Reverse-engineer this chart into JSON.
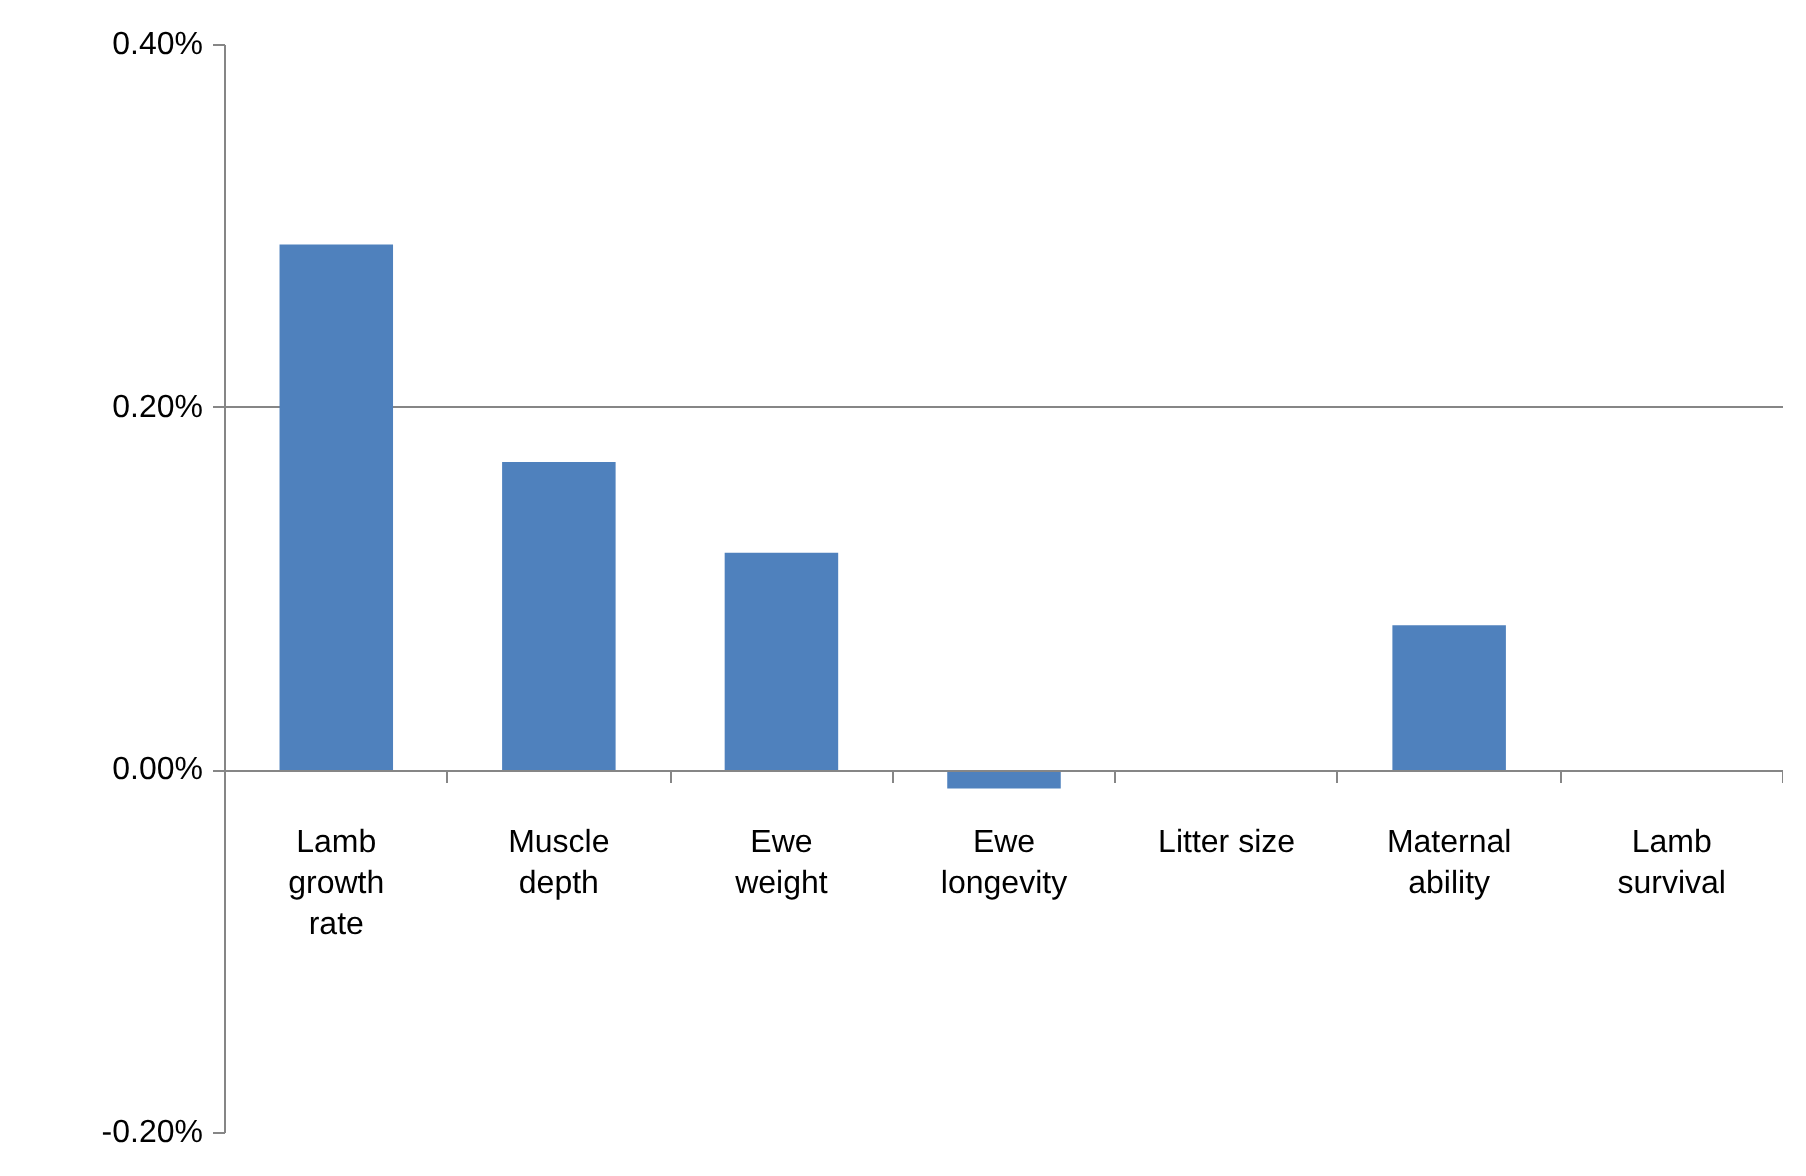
{
  "chart_data": {
    "type": "bar",
    "categories": [
      "Lamb\ngrowth\nrate",
      "Muscle\ndepth",
      "Ewe\nweight",
      "Ewe\nlongevity",
      "Litter size",
      "Maternal\nability",
      "Lamb\nsurvival"
    ],
    "values": [
      0.29,
      0.17,
      0.12,
      -0.01,
      0,
      0.08,
      0
    ],
    "color": "#4f81bd",
    "ylim": [
      -0.2,
      0.4
    ],
    "yticks": [
      {
        "value": -0.2,
        "label": "-0.20%"
      },
      {
        "value": 0,
        "label": "0.00%"
      },
      {
        "value": 0.2,
        "label": "0.20%"
      },
      {
        "value": 0.4,
        "label": "0.40%"
      }
    ],
    "grid": "y"
  }
}
